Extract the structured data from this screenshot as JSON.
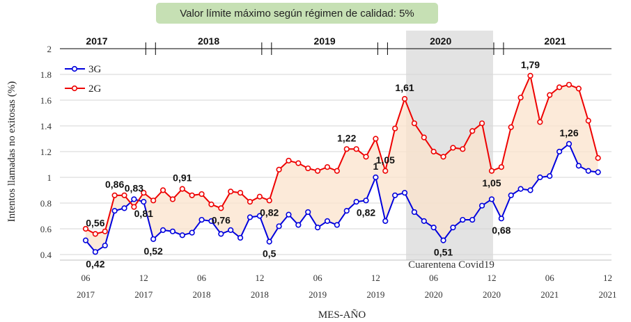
{
  "banner": "Valor límite máximo según régimen de calidad: 5%",
  "covid_label": "Cuarentena Covid19",
  "chart_data": {
    "type": "line",
    "xlabel": "MES-AÑO",
    "ylabel": "Intentos llamadas no exitosas (%)",
    "ylim": [
      0.4,
      2
    ],
    "yticks": [
      "0.4",
      "0.6",
      "0.8",
      "1",
      "1.2",
      "1.4",
      "1.6",
      "1.8",
      "2"
    ],
    "grid": true,
    "legend_position": "top-left",
    "x_start": "2017-06",
    "x_end": "2021-12",
    "x_ticks": [
      {
        "month": "06",
        "year": "2017"
      },
      {
        "month": "12",
        "year": "2017"
      },
      {
        "month": "06",
        "year": "2018"
      },
      {
        "month": "12",
        "year": "2018"
      },
      {
        "month": "06",
        "year": "2019"
      },
      {
        "month": "12",
        "year": "2019"
      },
      {
        "month": "06",
        "year": "2020"
      },
      {
        "month": "12",
        "year": "2020"
      },
      {
        "month": "06",
        "year": "2021"
      },
      {
        "month": "12",
        "year": "2021"
      }
    ],
    "year_labels": [
      "2017",
      "2018",
      "2019",
      "2020",
      "2021"
    ],
    "shaded_region": {
      "label": "Cuarentena Covid19",
      "from": "2020-03",
      "to": "2020-12"
    },
    "series": [
      {
        "name": "3G",
        "color": "#0000dd",
        "values": [
          0.51,
          0.42,
          0.47,
          0.74,
          0.76,
          0.83,
          0.81,
          0.52,
          0.59,
          0.58,
          0.55,
          0.57,
          0.67,
          0.66,
          0.56,
          0.59,
          0.53,
          0.69,
          0.7,
          0.5,
          0.62,
          0.71,
          0.63,
          0.73,
          0.61,
          0.66,
          0.63,
          0.74,
          0.81,
          0.82,
          1.0,
          0.66,
          0.86,
          0.88,
          0.73,
          0.66,
          0.61,
          0.51,
          0.61,
          0.67,
          0.67,
          0.78,
          0.83,
          0.68,
          0.86,
          0.91,
          0.9,
          1.0,
          1.01,
          1.2,
          1.26,
          1.09,
          1.05,
          1.04
        ]
      },
      {
        "name": "2G",
        "color": "#ee0000",
        "values": [
          0.6,
          0.56,
          0.58,
          0.86,
          0.86,
          0.77,
          0.88,
          0.82,
          0.9,
          0.83,
          0.91,
          0.86,
          0.87,
          0.79,
          0.76,
          0.89,
          0.88,
          0.81,
          0.85,
          0.82,
          1.06,
          1.13,
          1.11,
          1.07,
          1.05,
          1.08,
          1.05,
          1.22,
          1.22,
          1.16,
          1.3,
          1.05,
          1.38,
          1.61,
          1.42,
          1.31,
          1.2,
          1.16,
          1.23,
          1.22,
          1.36,
          1.42,
          1.05,
          1.08,
          1.39,
          1.62,
          1.79,
          1.43,
          1.64,
          1.7,
          1.72,
          1.69,
          1.44,
          1.15
        ]
      }
    ],
    "data_labels": [
      {
        "series": "3G",
        "index": 1,
        "text": "0,42",
        "pos": "below"
      },
      {
        "series": "2G",
        "index": 1,
        "text": "0,56",
        "pos": "above"
      },
      {
        "series": "2G",
        "index": 3,
        "text": "0,86",
        "pos": "above"
      },
      {
        "series": "3G",
        "index": 5,
        "text": "0,83",
        "pos": "above"
      },
      {
        "series": "3G",
        "index": 6,
        "text": "0,81",
        "pos": "below"
      },
      {
        "series": "3G",
        "index": 7,
        "text": "0,52",
        "pos": "below"
      },
      {
        "series": "2G",
        "index": 10,
        "text": "0,91",
        "pos": "above"
      },
      {
        "series": "2G",
        "index": 14,
        "text": "0,76",
        "pos": "below"
      },
      {
        "series": "3G",
        "index": 19,
        "text": "0,5",
        "pos": "below"
      },
      {
        "series": "2G",
        "index": 19,
        "text": "0,82",
        "pos": "below"
      },
      {
        "series": "2G",
        "index": 27,
        "text": "1,22",
        "pos": "above"
      },
      {
        "series": "3G",
        "index": 29,
        "text": "0,82",
        "pos": "below"
      },
      {
        "series": "3G",
        "index": 30,
        "text": "1",
        "pos": "above"
      },
      {
        "series": "2G",
        "index": 31,
        "text": "1,05",
        "pos": "above"
      },
      {
        "series": "2G",
        "index": 33,
        "text": "1,61",
        "pos": "above"
      },
      {
        "series": "3G",
        "index": 37,
        "text": "0,51",
        "pos": "below"
      },
      {
        "series": "2G",
        "index": 42,
        "text": "1,05",
        "pos": "below"
      },
      {
        "series": "3G",
        "index": 43,
        "text": "0,68",
        "pos": "below"
      },
      {
        "series": "2G",
        "index": 46,
        "text": "1,79",
        "pos": "above"
      },
      {
        "series": "3G",
        "index": 50,
        "text": "1,26",
        "pos": "above"
      }
    ]
  }
}
